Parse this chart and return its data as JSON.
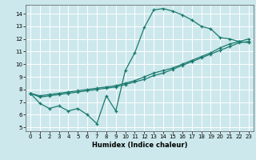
{
  "xlabel": "Humidex (Indice chaleur)",
  "bg_color": "#cce8ec",
  "grid_color": "#ffffff",
  "line_color": "#1a7a6e",
  "xlim": [
    -0.5,
    23.5
  ],
  "ylim": [
    4.7,
    14.7
  ],
  "xticks": [
    0,
    1,
    2,
    3,
    4,
    5,
    6,
    7,
    8,
    9,
    10,
    11,
    12,
    13,
    14,
    15,
    16,
    17,
    18,
    19,
    20,
    21,
    22,
    23
  ],
  "yticks": [
    5,
    6,
    7,
    8,
    9,
    10,
    11,
    12,
    13,
    14
  ],
  "line1_x": [
    0,
    1,
    2,
    3,
    4,
    5,
    6,
    7,
    8,
    9,
    10,
    11,
    12,
    13,
    14,
    15,
    16,
    17,
    18,
    19,
    20,
    21,
    22,
    23
  ],
  "line1_y": [
    7.7,
    6.9,
    6.5,
    6.7,
    6.3,
    6.5,
    6.0,
    5.3,
    7.5,
    6.3,
    9.5,
    10.9,
    12.9,
    14.3,
    14.4,
    14.2,
    13.9,
    13.5,
    13.0,
    12.8,
    12.1,
    12.0,
    11.8,
    11.7
  ],
  "line2_x": [
    0,
    1,
    2,
    3,
    4,
    5,
    6,
    7,
    8,
    9,
    10,
    11,
    12,
    13,
    14,
    15,
    16,
    17,
    18,
    19,
    20,
    21,
    22,
    23
  ],
  "line2_y": [
    7.7,
    7.4,
    7.5,
    7.6,
    7.7,
    7.8,
    7.9,
    8.0,
    8.1,
    8.2,
    8.4,
    8.6,
    8.8,
    9.1,
    9.3,
    9.6,
    9.9,
    10.2,
    10.5,
    10.8,
    11.1,
    11.4,
    11.7,
    11.8
  ],
  "line3_x": [
    0,
    1,
    2,
    3,
    4,
    5,
    6,
    7,
    8,
    9,
    10,
    11,
    12,
    13,
    14,
    15,
    16,
    17,
    18,
    19,
    20,
    21,
    22,
    23
  ],
  "line3_y": [
    7.7,
    7.5,
    7.6,
    7.7,
    7.8,
    7.9,
    8.0,
    8.1,
    8.2,
    8.3,
    8.5,
    8.7,
    9.0,
    9.3,
    9.5,
    9.7,
    10.0,
    10.3,
    10.6,
    10.9,
    11.3,
    11.6,
    11.8,
    12.0
  ]
}
